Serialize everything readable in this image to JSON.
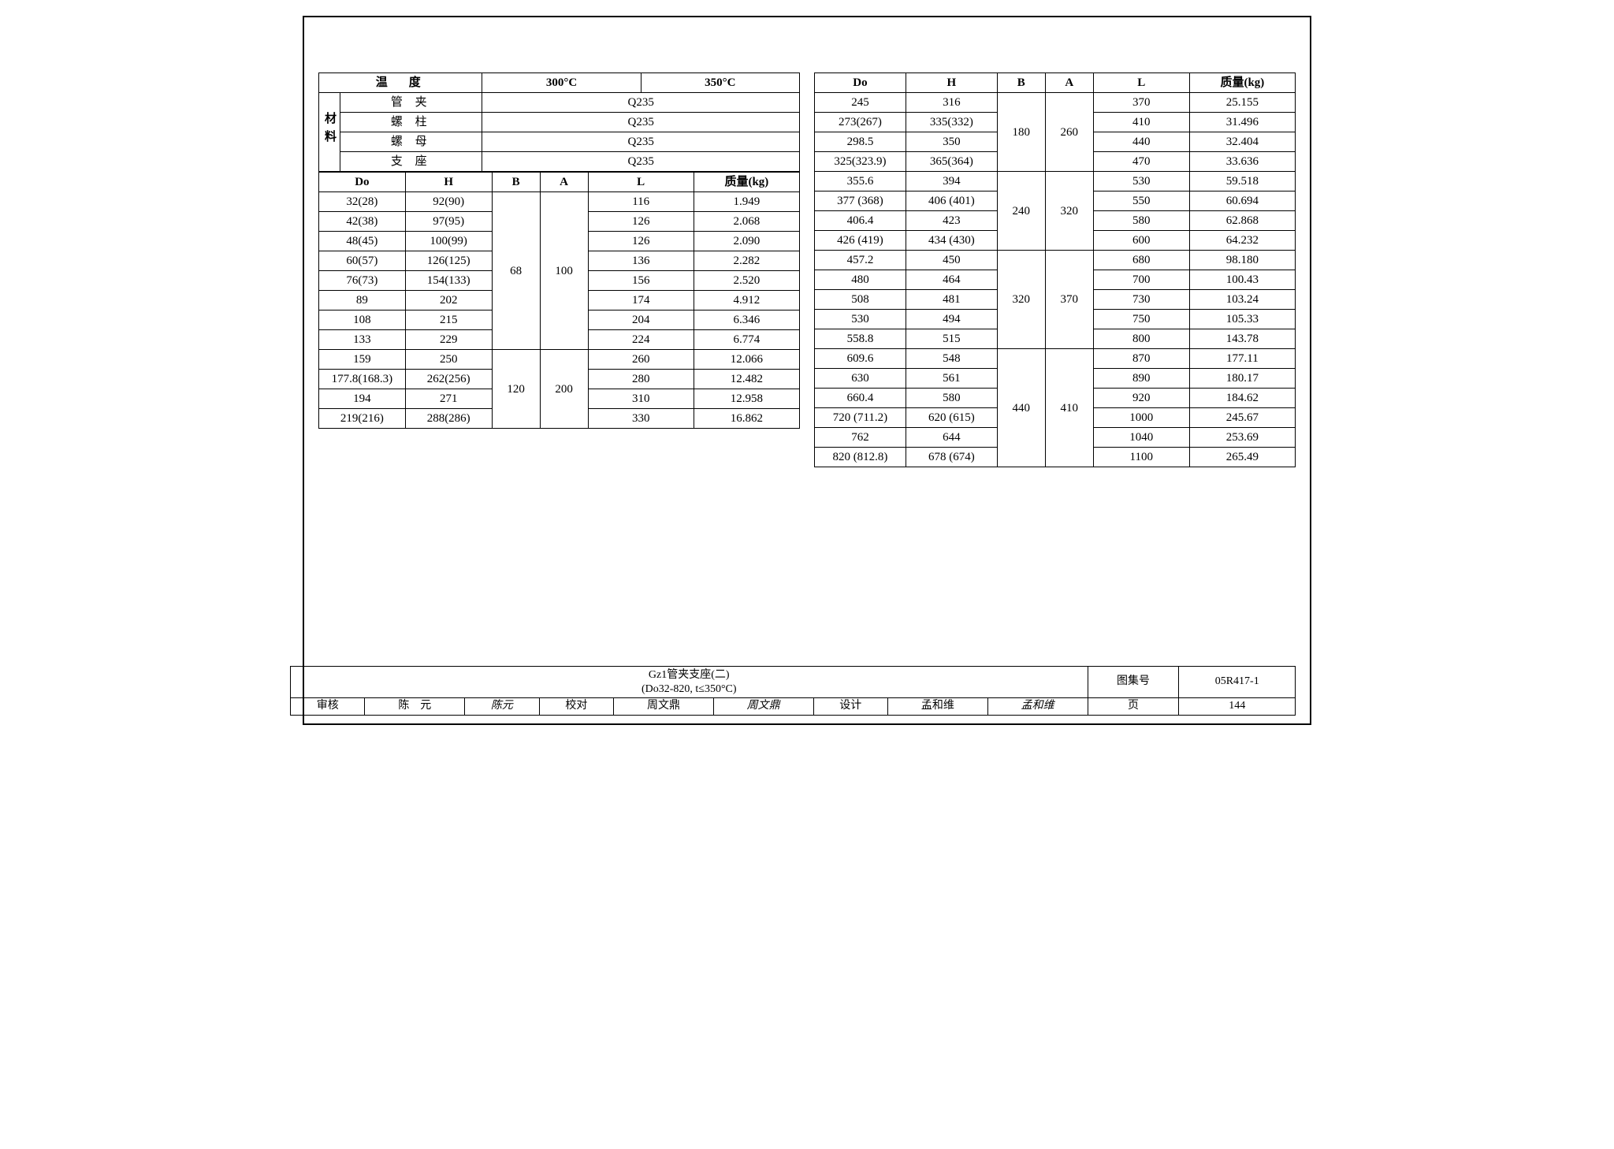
{
  "left": {
    "temp_hdr": "温　度",
    "temp_cols": [
      "300°C",
      "350°C"
    ],
    "mat_label": "材料",
    "mat_rows": [
      {
        "name": "管 夹",
        "val": "Q235"
      },
      {
        "name": "螺 柱",
        "val": "Q235"
      },
      {
        "name": "螺 母",
        "val": "Q235"
      },
      {
        "name": "支 座",
        "val": "Q235"
      }
    ],
    "cols": [
      "Do",
      "H",
      "B",
      "A",
      "L",
      "质量(kg)"
    ],
    "groups": [
      {
        "B": "68",
        "A": "100",
        "rows": [
          [
            "32(28)",
            "92(90)",
            "116",
            "1.949"
          ],
          [
            "42(38)",
            "97(95)",
            "126",
            "2.068"
          ],
          [
            "48(45)",
            "100(99)",
            "126",
            "2.090"
          ],
          [
            "60(57)",
            "126(125)",
            "136",
            "2.282"
          ],
          [
            "76(73)",
            "154(133)",
            "156",
            "2.520"
          ],
          [
            "89",
            "202",
            "174",
            "4.912"
          ],
          [
            "108",
            "215",
            "204",
            "6.346"
          ],
          [
            "133",
            "229",
            "224",
            "6.774"
          ]
        ]
      },
      {
        "B": "120",
        "A": "200",
        "rows": [
          [
            "159",
            "250",
            "260",
            "12.066"
          ],
          [
            "177.8(168.3)",
            "262(256)",
            "280",
            "12.482"
          ],
          [
            "194",
            "271",
            "310",
            "12.958"
          ],
          [
            "219(216)",
            "288(286)",
            "330",
            "16.862"
          ]
        ]
      }
    ]
  },
  "right": {
    "cols": [
      "Do",
      "H",
      "B",
      "A",
      "L",
      "质量(kg)"
    ],
    "groups": [
      {
        "B": "180",
        "A": "260",
        "rows": [
          [
            "245",
            "316",
            "370",
            "25.155"
          ],
          [
            "273(267)",
            "335(332)",
            "410",
            "31.496"
          ],
          [
            "298.5",
            "350",
            "440",
            "32.404"
          ],
          [
            "325(323.9)",
            "365(364)",
            "470",
            "33.636"
          ]
        ]
      },
      {
        "B": "240",
        "A": "320",
        "rows": [
          [
            "355.6",
            "394",
            "530",
            "59.518"
          ],
          [
            "377 (368)",
            "406 (401)",
            "550",
            "60.694"
          ],
          [
            "406.4",
            "423",
            "580",
            "62.868"
          ],
          [
            "426 (419)",
            "434 (430)",
            "600",
            "64.232"
          ]
        ]
      },
      {
        "B": "320",
        "A": "370",
        "rows": [
          [
            "457.2",
            "450",
            "680",
            "98.180"
          ],
          [
            "480",
            "464",
            "700",
            "100.43"
          ],
          [
            "508",
            "481",
            "730",
            "103.24"
          ],
          [
            "530",
            "494",
            "750",
            "105.33"
          ],
          [
            "558.8",
            "515",
            "800",
            "143.78"
          ]
        ]
      },
      {
        "B": "440",
        "A": "410",
        "rows": [
          [
            "609.6",
            "548",
            "870",
            "177.11"
          ],
          [
            "630",
            "561",
            "890",
            "180.17"
          ],
          [
            "660.4",
            "580",
            "920",
            "184.62"
          ],
          [
            "720 (711.2)",
            "620 (615)",
            "1000",
            "245.67"
          ],
          [
            "762",
            "644",
            "1040",
            "253.69"
          ],
          [
            "820 (812.8)",
            "678 (674)",
            "1100",
            "265.49"
          ]
        ]
      }
    ]
  },
  "titleblock": {
    "title_l1": "Gz1管夹支座(二)",
    "title_l2": "(Do32-820, t≤350°C)",
    "album_lbl": "图集号",
    "album_val": "05R417-1",
    "review_lbl": "审核",
    "review_name": "陈　元",
    "review_sig": "陈元",
    "check_lbl": "校对",
    "check_name": "周文鼎",
    "check_sig": "周文鼎",
    "design_lbl": "设计",
    "design_name": "孟和维",
    "design_sig": "孟和维",
    "page_lbl": "页",
    "page_val": "144"
  },
  "style": {
    "border_color": "#000000",
    "bg": "#ffffff",
    "font_size_cell": 15,
    "font_size_tb": 14
  }
}
